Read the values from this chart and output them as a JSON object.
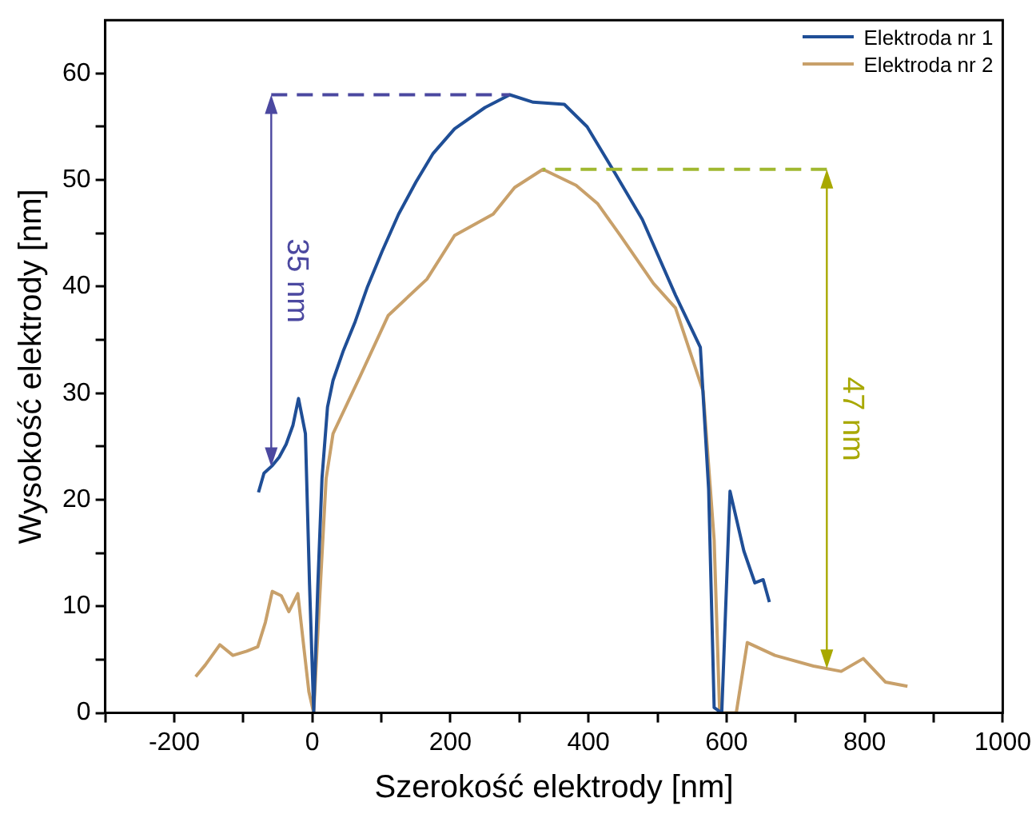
{
  "chart_data": {
    "type": "line",
    "xlabel": "Szerokość elektrody [nm]",
    "ylabel": "Wysokość elektrody [nm]",
    "xlim": [
      -300,
      1000
    ],
    "xticks": [
      {
        "value": -300,
        "label": null
      },
      -200,
      {
        "value": -100,
        "label": null
      },
      0,
      {
        "value": 100,
        "label": null
      },
      200,
      {
        "value": 300,
        "label": null
      },
      400,
      {
        "value": 500,
        "label": null
      },
      600,
      {
        "value": 700,
        "label": null
      },
      800,
      {
        "value": 900,
        "label": null
      },
      1000
    ],
    "ylim": [
      0,
      65
    ],
    "yticks": [
      0,
      {
        "value": 5,
        "label": null
      },
      10,
      {
        "value": 15,
        "label": null
      },
      20,
      {
        "value": 25,
        "label": null
      },
      30,
      {
        "value": 35,
        "label": null
      },
      40,
      {
        "value": 45,
        "label": null
      },
      50,
      {
        "value": 55,
        "label": null
      },
      60
    ],
    "grid": false,
    "legend": "top right",
    "marker": "none",
    "line_style": "solid",
    "annotations": [
      "35 nm",
      "47 nm"
    ],
    "series": [
      {
        "name": "Elektroda nr 1",
        "color": "#1f4e96",
        "x": [
          -78,
          -70,
          -58,
          -48,
          -38,
          -28,
          -20,
          -10,
          -4,
          2,
          8,
          14,
          22,
          30,
          45,
          62,
          80,
          101,
          125,
          150,
          175,
          206,
          250,
          286,
          320,
          365,
          398,
          437,
          478,
          526,
          562,
          574,
          582,
          593,
          605,
          625,
          641,
          653,
          662
        ],
        "values": [
          20.7,
          22.5,
          23.2,
          24,
          25.2,
          27,
          29.5,
          26.2,
          12,
          0.1,
          12,
          22,
          28.7,
          31.2,
          34,
          36.7,
          40,
          43.3,
          46.8,
          49.8,
          52.5,
          54.8,
          56.8,
          58,
          57.3,
          57.1,
          55,
          50.8,
          46.3,
          39.2,
          34.3,
          21,
          0.5,
          0,
          20.8,
          15.2,
          12.2,
          12.5,
          10.4
        ]
      },
      {
        "name": "Elektroda nr 2",
        "color": "#c8a06a",
        "x": [
          -169,
          -155,
          -134,
          -115,
          -95,
          -79,
          -68,
          -58,
          -45,
          -34,
          -21,
          -12,
          -5,
          2,
          10,
          20,
          30,
          70,
          110,
          166,
          206,
          262,
          293,
          334,
          382,
          413,
          446,
          494,
          526,
          566,
          582,
          590,
          614,
          630,
          670,
          726,
          766,
          798,
          830,
          862
        ],
        "values": [
          3.4,
          4.5,
          6.4,
          5.4,
          5.8,
          6.2,
          8.5,
          11.4,
          11,
          9.5,
          11.2,
          6,
          2,
          0,
          10,
          22,
          26.2,
          31.7,
          37.3,
          40.7,
          44.8,
          46.8,
          49.3,
          51,
          49.5,
          47.8,
          44.8,
          40.3,
          38,
          30.2,
          16.2,
          0,
          0,
          6.6,
          5.4,
          4.4,
          3.9,
          5.1,
          2.9,
          2.5
        ]
      }
    ]
  }
}
